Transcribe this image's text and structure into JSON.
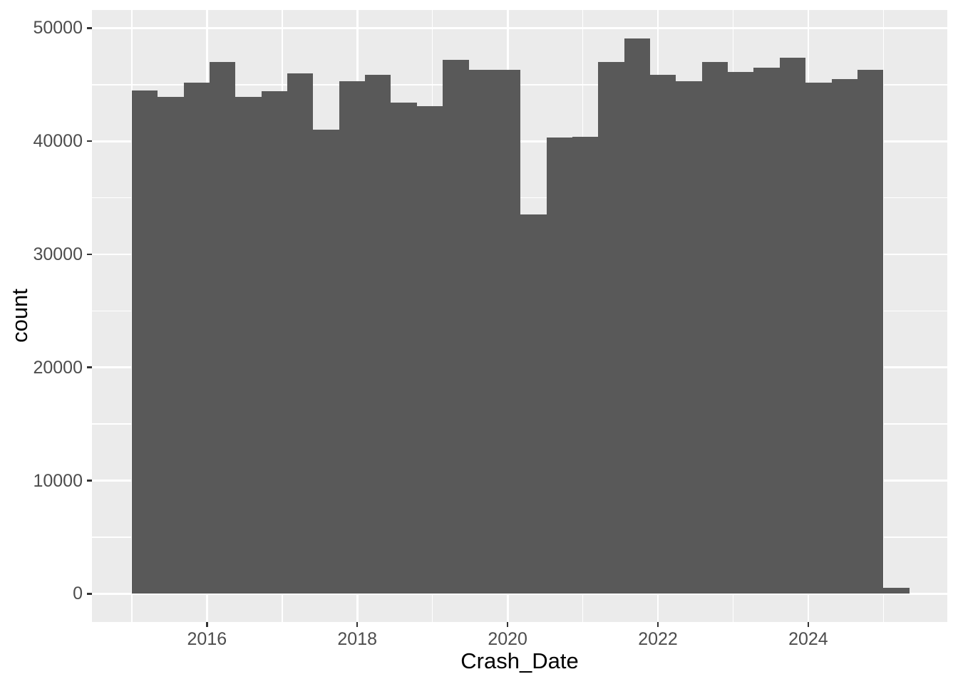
{
  "chart_data": {
    "type": "bar",
    "subtype": "histogram",
    "title": "",
    "xlabel": "Crash_Date",
    "ylabel": "count",
    "bin_start_year": 2015.0,
    "bin_width_years": 0.3448,
    "counts": [
      44500,
      43900,
      45200,
      47000,
      43900,
      44400,
      46000,
      41000,
      45300,
      45900,
      43400,
      43100,
      47200,
      46300,
      46300,
      33500,
      40300,
      40400,
      47000,
      49100,
      45900,
      45300,
      47000,
      46100,
      46500,
      47400,
      45200,
      45500,
      46300,
      500
    ],
    "x_axis": {
      "range": [
        2014.47,
        2025.85
      ],
      "major_ticks": [
        2016,
        2018,
        2020,
        2022,
        2024
      ],
      "major_labels": [
        "2016",
        "2018",
        "2020",
        "2022",
        "2024"
      ],
      "minor_ticks": [
        2015,
        2017,
        2019,
        2021,
        2023,
        2025
      ]
    },
    "y_axis": {
      "range": [
        -2500,
        51600
      ],
      "major_ticks": [
        0,
        10000,
        20000,
        30000,
        40000,
        50000
      ],
      "major_labels": [
        "0",
        "10000",
        "20000",
        "30000",
        "40000",
        "50000"
      ],
      "minor_ticks": [
        5000,
        15000,
        25000,
        35000,
        45000
      ]
    },
    "legend": "none",
    "grid": "on",
    "colors": {
      "bar_fill": "#595959",
      "panel_bg": "#EBEBEB",
      "gridline": "#FFFFFF",
      "tick_label": "#4D4D4D",
      "tick_mark": "#333333",
      "axis_title": "#000000",
      "background": "#FFFFFF"
    }
  }
}
